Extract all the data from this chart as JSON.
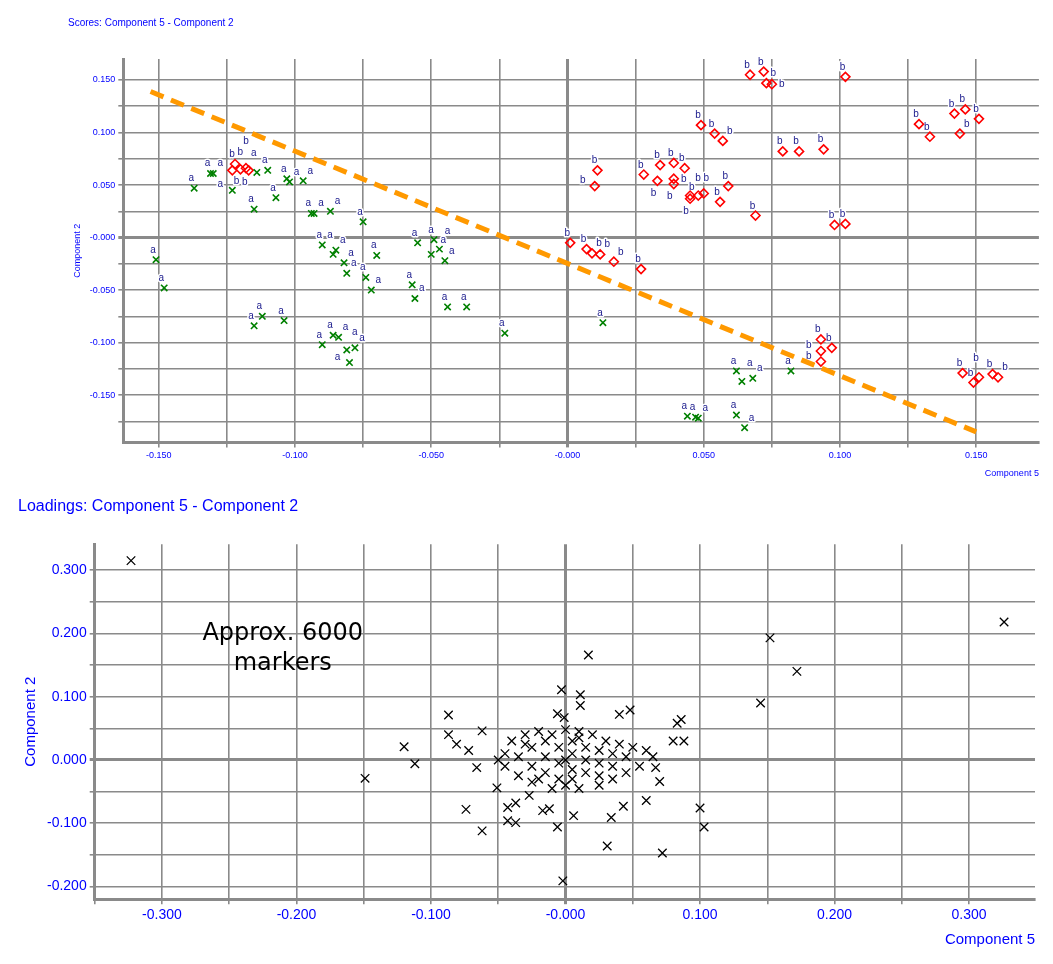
{
  "chart_data": [
    {
      "type": "scatter",
      "title": "Scores: Component 5 - Component 2",
      "xlabel": "Component 5",
      "ylabel": "Component 2",
      "xlim": [
        -0.163,
        0.173
      ],
      "ylim": [
        -0.195,
        0.17
      ],
      "grid": true,
      "xticks": [
        {
          "value": -0.15,
          "label": "-0.150"
        },
        {
          "value": -0.125,
          "label": null
        },
        {
          "value": -0.1,
          "label": "-0.100"
        },
        {
          "value": -0.075,
          "label": null
        },
        {
          "value": -0.05,
          "label": "-0.050"
        },
        {
          "value": -0.025,
          "label": null
        },
        {
          "value": 0,
          "label": "-0.000"
        },
        {
          "value": 0.025,
          "label": null
        },
        {
          "value": 0.05,
          "label": "0.050"
        },
        {
          "value": 0.075,
          "label": null
        },
        {
          "value": 0.1,
          "label": "0.100"
        },
        {
          "value": 0.125,
          "label": null
        },
        {
          "value": 0.15,
          "label": "0.150"
        }
      ],
      "yticks": [
        {
          "value": -0.175,
          "label": null
        },
        {
          "value": -0.15,
          "label": "-0.150"
        },
        {
          "value": -0.125,
          "label": null
        },
        {
          "value": -0.1,
          "label": "-0.100"
        },
        {
          "value": -0.075,
          "label": null
        },
        {
          "value": -0.05,
          "label": "-0.050"
        },
        {
          "value": -0.025,
          "label": null
        },
        {
          "value": 0,
          "label": "-0.000"
        },
        {
          "value": 0.025,
          "label": null
        },
        {
          "value": 0.05,
          "label": "0.050"
        },
        {
          "value": 0.075,
          "label": null
        },
        {
          "value": 0.1,
          "label": "0.100"
        },
        {
          "value": 0.125,
          "label": null
        },
        {
          "value": 0.15,
          "label": "0.150"
        }
      ],
      "series": [
        {
          "name": "a",
          "type": "scatter",
          "marker": "cross",
          "color": "#008000",
          "x": [
            -0.151,
            -0.148,
            -0.137,
            -0.131,
            -0.13,
            -0.123,
            -0.115,
            -0.114,
            -0.11,
            -0.107,
            -0.103,
            -0.102,
            -0.097,
            -0.094,
            -0.093,
            -0.087,
            -0.075,
            -0.09,
            -0.086,
            -0.085,
            -0.082,
            -0.081,
            -0.074,
            -0.072,
            -0.07,
            -0.055,
            -0.049,
            -0.05,
            -0.047,
            -0.045,
            -0.057,
            -0.056,
            -0.044,
            -0.037,
            -0.023,
            -0.115,
            -0.112,
            -0.104,
            -0.09,
            -0.086,
            -0.084,
            -0.081,
            -0.078,
            -0.08,
            0.013,
            0.062,
            0.064,
            0.068,
            0.082,
            0.044,
            0.047,
            0.048,
            0.062,
            0.065
          ],
          "values": [
            -0.021,
            -0.048,
            0.047,
            0.061,
            0.061,
            0.045,
            0.027,
            0.062,
            0.064,
            0.038,
            0.056,
            0.053,
            0.054,
            0.023,
            0.023,
            0.025,
            0.015,
            -0.007,
            -0.016,
            -0.012,
            -0.024,
            -0.034,
            -0.038,
            -0.05,
            -0.017,
            -0.005,
            -0.002,
            -0.016,
            -0.011,
            -0.022,
            -0.045,
            -0.058,
            -0.066,
            -0.066,
            -0.091,
            -0.084,
            -0.075,
            -0.079,
            -0.102,
            -0.093,
            -0.095,
            -0.107,
            -0.105,
            -0.119,
            -0.081,
            -0.127,
            -0.137,
            -0.134,
            -0.127,
            -0.17,
            -0.171,
            -0.172,
            -0.169,
            -0.181
          ]
        },
        {
          "name": "b",
          "type": "scatter",
          "marker": "diamond",
          "color": "#ff0000",
          "x": [
            -0.122,
            -0.123,
            -0.12,
            -0.118,
            -0.117,
            0.001,
            0.007,
            0.009,
            0.012,
            0.017,
            0.027,
            0.01,
            0.011,
            0.028,
            0.033,
            0.034,
            0.039,
            0.043,
            0.039,
            0.039,
            0.045,
            0.045,
            0.048,
            0.05,
            0.059,
            0.056,
            0.069,
            0.098,
            0.102,
            0.079,
            0.085,
            0.094,
            0.049,
            0.054,
            0.057,
            0.067,
            0.072,
            0.073,
            0.075,
            0.102,
            0.129,
            0.133,
            0.142,
            0.146,
            0.151,
            0.144,
            0.093,
            0.093,
            0.097,
            0.093,
            0.145,
            0.149,
            0.151,
            0.156,
            0.158
          ],
          "values": [
            0.07,
            0.064,
            0.065,
            0.066,
            0.064,
            -0.005,
            -0.011,
            -0.015,
            -0.016,
            -0.023,
            -0.03,
            0.049,
            0.064,
            0.06,
            0.054,
            0.069,
            0.071,
            0.066,
            0.056,
            0.051,
            0.04,
            0.037,
            0.04,
            0.042,
            0.049,
            0.034,
            0.021,
            0.012,
            0.013,
            0.082,
            0.082,
            0.084,
            0.107,
            0.099,
            0.092,
            0.155,
            0.158,
            0.147,
            0.146,
            0.153,
            0.108,
            0.096,
            0.118,
            0.122,
            0.113,
            0.099,
            -0.097,
            -0.108,
            -0.105,
            -0.118,
            -0.129,
            -0.138,
            -0.133,
            -0.13,
            -0.133
          ]
        },
        {
          "type": "line",
          "marker": "none",
          "line_style": "dashed",
          "color": "#ff9900",
          "x": [
            -0.153,
            0.15
          ],
          "values": [
            0.139,
            -0.185
          ]
        }
      ]
    },
    {
      "type": "scatter",
      "title": "Loadings: Component 5 - Component 2",
      "xlabel": "Component 5",
      "ylabel": "Component 2",
      "xlim": [
        -0.35,
        0.349
      ],
      "ylim": [
        -0.22,
        0.341
      ],
      "grid": true,
      "annotations": [
        "Approx. 6000 markers"
      ],
      "xticks": [
        {
          "value": -0.35,
          "label": null
        },
        {
          "value": -0.3,
          "label": "-0.300"
        },
        {
          "value": -0.25,
          "label": null
        },
        {
          "value": -0.2,
          "label": "-0.200"
        },
        {
          "value": -0.15,
          "label": null
        },
        {
          "value": -0.1,
          "label": "-0.100"
        },
        {
          "value": -0.05,
          "label": null
        },
        {
          "value": 0,
          "label": "-0.000"
        },
        {
          "value": 0.05,
          "label": null
        },
        {
          "value": 0.1,
          "label": "0.100"
        },
        {
          "value": 0.15,
          "label": null
        },
        {
          "value": 0.2,
          "label": "0.200"
        },
        {
          "value": 0.25,
          "label": null
        },
        {
          "value": 0.3,
          "label": "0.300"
        }
      ],
      "yticks": [
        {
          "value": -0.2,
          "label": "-0.200"
        },
        {
          "value": -0.15,
          "label": null
        },
        {
          "value": -0.1,
          "label": "-0.100"
        },
        {
          "value": -0.05,
          "label": null
        },
        {
          "value": 0,
          "label": "0.000"
        },
        {
          "value": 0.05,
          "label": null
        },
        {
          "value": 0.1,
          "label": "0.100"
        },
        {
          "value": 0.15,
          "label": null
        },
        {
          "value": 0.2,
          "label": "0.200"
        },
        {
          "value": 0.25,
          "label": null
        },
        {
          "value": 0.3,
          "label": "0.300"
        }
      ],
      "series": [
        {
          "type": "scatter",
          "marker": "cross",
          "color": "#000000",
          "x": [
            -0.323,
            -0.149,
            -0.12,
            -0.112,
            -0.087,
            -0.087,
            -0.081,
            -0.074,
            -0.062,
            -0.062,
            -0.072,
            -0.066,
            -0.051,
            -0.043,
            -0.043,
            -0.037,
            -0.037,
            -0.027,
            -0.017,
            -0.012,
            -0.006,
            -0.002,
            -0.003,
            -0.006,
            -0.001,
            0.017,
            0.011,
            0.011,
            0.048,
            0.04,
            0.083,
            0.086,
            0.088,
            0.08,
            0.067,
            0.07,
            0.06,
            0.043,
            0.034,
            0.006,
            0.031,
            0.072,
            0.1,
            0.103,
            0.145,
            0.152,
            0.172,
            0.326,
            -0.045,
            -0.04,
            -0.03,
            -0.02,
            -0.01,
            0,
            0.01,
            0.02,
            0.03,
            0.04,
            0.05,
            0.06,
            0.065,
            0.055,
            0.045,
            0.035,
            0.025,
            0.01,
            0,
            -0.01,
            -0.025,
            -0.035,
            -0.045,
            -0.05,
            -0.035,
            -0.025,
            -0.025,
            -0.015,
            -0.015,
            -0.015,
            -0.005,
            -0.005,
            -0.005,
            0.005,
            0.005,
            0.005,
            0.005,
            0.015,
            0.015,
            0.015,
            0.025,
            0.025,
            0.025,
            0.035,
            0.035,
            0.045,
            -0.03,
            0,
            0.01,
            -0.02
          ],
          "values": [
            0.315,
            -0.029,
            0.021,
            -0.006,
            0.071,
            0.04,
            0.025,
            -0.078,
            0.046,
            -0.112,
            0.015,
            -0.012,
            -0.044,
            -0.075,
            -0.096,
            -0.099,
            -0.068,
            -0.056,
            -0.08,
            -0.077,
            -0.106,
            -0.191,
            0.111,
            0.073,
            0.067,
            0.166,
            0.103,
            0.086,
            0.079,
            0.072,
            0.058,
            0.064,
            0.03,
            0.03,
            -0.012,
            -0.034,
            -0.064,
            -0.073,
            -0.091,
            -0.088,
            -0.136,
            -0.147,
            -0.076,
            -0.106,
            0.09,
            0.193,
            0.14,
            0.218,
            0.01,
            0.03,
            0.04,
            0.045,
            0.04,
            0.048,
            0.045,
            0.04,
            0.03,
            0.025,
            0.02,
            0.015,
            0.005,
            -0.01,
            -0.02,
            -0.03,
            -0.04,
            -0.045,
            -0.04,
            -0.045,
            -0.035,
            -0.025,
            -0.01,
            0,
            0.005,
            0.02,
            -0.01,
            0.03,
            0.005,
            -0.02,
            0.02,
            -0.005,
            -0.03,
            0.03,
            0.01,
            -0.015,
            -0.03,
            0.02,
            0,
            -0.02,
            0.015,
            -0.005,
            -0.025,
            0.01,
            -0.01,
            0.005,
            0.025,
            0,
            0.035,
            -0.03
          ]
        }
      ]
    }
  ]
}
